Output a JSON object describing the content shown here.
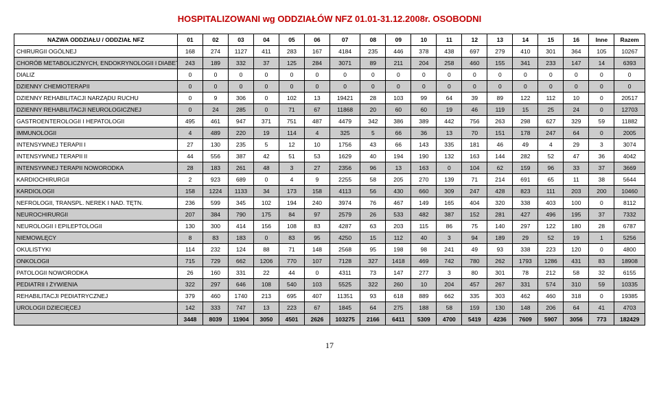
{
  "title": "HOSPITALIZOWANI wg ODDZIAŁÓW NFZ  01.01-31.12.2008r. OSOBODNI",
  "footer_page": "17",
  "columns": [
    "NAZWA ODDZIAŁU / ODDZIAŁ NFZ",
    "01",
    "02",
    "03",
    "04",
    "05",
    "06",
    "07",
    "08",
    "09",
    "10",
    "11",
    "12",
    "13",
    "14",
    "15",
    "16",
    "Inne",
    "Razem"
  ],
  "shaded_row_indices": [
    1,
    3,
    5,
    7,
    10,
    12,
    14,
    16,
    18,
    20,
    22
  ],
  "totals": [
    "3448",
    "8039",
    "11904",
    "3050",
    "4501",
    "2626",
    "103275",
    "2166",
    "6411",
    "5309",
    "4700",
    "5419",
    "4236",
    "7609",
    "5907",
    "3056",
    "773",
    "182429"
  ],
  "rows": [
    {
      "name": "CHIRURGII OGÓLNEJ",
      "v": [
        "168",
        "274",
        "1127",
        "411",
        "283",
        "167",
        "4184",
        "235",
        "446",
        "378",
        "438",
        "697",
        "279",
        "410",
        "301",
        "364",
        "105",
        "10267"
      ]
    },
    {
      "name": "CHORÓB METABOLICZNYCH, ENDOKRYNOLOGII I DIABETOLOGII",
      "v": [
        "243",
        "189",
        "332",
        "37",
        "125",
        "284",
        "3071",
        "89",
        "211",
        "204",
        "258",
        "460",
        "155",
        "341",
        "233",
        "147",
        "14",
        "6393"
      ]
    },
    {
      "name": "DIALIZ",
      "v": [
        "0",
        "0",
        "0",
        "0",
        "0",
        "0",
        "0",
        "0",
        "0",
        "0",
        "0",
        "0",
        "0",
        "0",
        "0",
        "0",
        "0",
        "0"
      ]
    },
    {
      "name": "DZIENNY CHEMIOTERAPII",
      "v": [
        "0",
        "0",
        "0",
        "0",
        "0",
        "0",
        "0",
        "0",
        "0",
        "0",
        "0",
        "0",
        "0",
        "0",
        "0",
        "0",
        "0",
        "0"
      ]
    },
    {
      "name": "DZIENNY REHABILITACJI NARZĄDU RUCHU",
      "v": [
        "0",
        "9",
        "306",
        "0",
        "102",
        "13",
        "19421",
        "28",
        "103",
        "99",
        "64",
        "39",
        "89",
        "122",
        "112",
        "10",
        "0",
        "20517"
      ]
    },
    {
      "name": "DZIENNY REHABILITACJI NEUROLOGICZNEJ",
      "v": [
        "0",
        "24",
        "285",
        "0",
        "71",
        "67",
        "11868",
        "20",
        "60",
        "60",
        "19",
        "46",
        "119",
        "15",
        "25",
        "24",
        "0",
        "12703"
      ]
    },
    {
      "name": "GASTROENTEROLOGII I HEPATOLOGII",
      "v": [
        "495",
        "461",
        "947",
        "371",
        "751",
        "487",
        "4479",
        "342",
        "386",
        "389",
        "442",
        "756",
        "263",
        "298",
        "627",
        "329",
        "59",
        "11882"
      ]
    },
    {
      "name": "IMMUNOLOGII",
      "v": [
        "4",
        "489",
        "220",
        "19",
        "114",
        "4",
        "325",
        "5",
        "66",
        "36",
        "13",
        "70",
        "151",
        "178",
        "247",
        "64",
        "0",
        "2005"
      ]
    },
    {
      "name": "INTENSYWNEJ TERAPII I",
      "v": [
        "27",
        "130",
        "235",
        "5",
        "12",
        "10",
        "1756",
        "43",
        "66",
        "143",
        "335",
        "181",
        "46",
        "49",
        "4",
        "29",
        "3",
        "3074"
      ]
    },
    {
      "name": "INTENSYWNEJ TERAPII II",
      "v": [
        "44",
        "556",
        "387",
        "42",
        "51",
        "53",
        "1629",
        "40",
        "194",
        "190",
        "132",
        "163",
        "144",
        "282",
        "52",
        "47",
        "36",
        "4042"
      ]
    },
    {
      "name": "INTENSYWNEJ TERAPII NOWORODKA",
      "v": [
        "28",
        "183",
        "261",
        "48",
        "3",
        "27",
        "2356",
        "96",
        "13",
        "163",
        "0",
        "104",
        "62",
        "159",
        "96",
        "33",
        "37",
        "3669"
      ]
    },
    {
      "name": "KARDIOCHIRURGII",
      "v": [
        "2",
        "923",
        "689",
        "0",
        "4",
        "9",
        "2255",
        "58",
        "205",
        "270",
        "139",
        "71",
        "214",
        "691",
        "65",
        "11",
        "38",
        "5644"
      ]
    },
    {
      "name": "KARDIOLOGII",
      "v": [
        "158",
        "1224",
        "1133",
        "34",
        "173",
        "158",
        "4113",
        "56",
        "430",
        "660",
        "309",
        "247",
        "428",
        "823",
        "111",
        "203",
        "200",
        "10460"
      ]
    },
    {
      "name": "NEFROLOGII, TRANSPL. NEREK I NAD. TĘTN.",
      "v": [
        "236",
        "599",
        "345",
        "102",
        "194",
        "240",
        "3974",
        "76",
        "467",
        "149",
        "165",
        "404",
        "320",
        "338",
        "403",
        "100",
        "0",
        "8112"
      ]
    },
    {
      "name": "NEUROCHIRURGII",
      "v": [
        "207",
        "384",
        "790",
        "175",
        "84",
        "97",
        "2579",
        "26",
        "533",
        "482",
        "387",
        "152",
        "281",
        "427",
        "496",
        "195",
        "37",
        "7332"
      ]
    },
    {
      "name": "NEUROLOGII I EPILEPTOLOGII",
      "v": [
        "130",
        "300",
        "414",
        "156",
        "108",
        "83",
        "4287",
        "63",
        "203",
        "115",
        "86",
        "75",
        "140",
        "297",
        "122",
        "180",
        "28",
        "6787"
      ]
    },
    {
      "name": "NIEMOWLĘCY",
      "v": [
        "8",
        "83",
        "183",
        "0",
        "83",
        "95",
        "4250",
        "15",
        "112",
        "40",
        "3",
        "94",
        "189",
        "29",
        "52",
        "19",
        "1",
        "5256"
      ]
    },
    {
      "name": "OKULISTYKI",
      "v": [
        "114",
        "232",
        "124",
        "88",
        "71",
        "148",
        "2568",
        "95",
        "198",
        "98",
        "241",
        "49",
        "93",
        "338",
        "223",
        "120",
        "0",
        "4800"
      ]
    },
    {
      "name": "ONKOLOGII",
      "v": [
        "715",
        "729",
        "662",
        "1206",
        "770",
        "107",
        "7128",
        "327",
        "1418",
        "469",
        "742",
        "780",
        "262",
        "1793",
        "1286",
        "431",
        "83",
        "18908"
      ]
    },
    {
      "name": "PATOLOGII NOWORODKA",
      "v": [
        "26",
        "160",
        "331",
        "22",
        "44",
        "0",
        "4311",
        "73",
        "147",
        "277",
        "3",
        "80",
        "301",
        "78",
        "212",
        "58",
        "32",
        "6155"
      ]
    },
    {
      "name": "PEDIATRII I ŻYWIENIA",
      "v": [
        "322",
        "297",
        "646",
        "108",
        "540",
        "103",
        "5525",
        "322",
        "260",
        "10",
        "204",
        "457",
        "267",
        "331",
        "574",
        "310",
        "59",
        "10335"
      ]
    },
    {
      "name": "REHABILITACJI PEDIATRYCZNEJ",
      "v": [
        "379",
        "460",
        "1740",
        "213",
        "695",
        "407",
        "11351",
        "93",
        "618",
        "889",
        "662",
        "335",
        "303",
        "462",
        "460",
        "318",
        "0",
        "19385"
      ]
    },
    {
      "name": "UROLOGII DZIECIĘCEJ",
      "v": [
        "142",
        "333",
        "747",
        "13",
        "223",
        "67",
        "1845",
        "64",
        "275",
        "188",
        "58",
        "159",
        "130",
        "148",
        "206",
        "64",
        "41",
        "4703"
      ]
    }
  ]
}
